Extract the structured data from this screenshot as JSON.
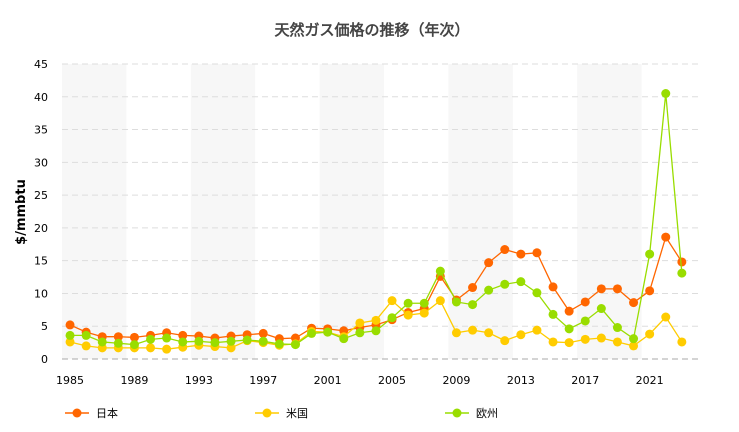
{
  "chart_data": {
    "type": "line",
    "title": "天然ガス価格の推移（年次）",
    "xlabel": "",
    "ylabel": "$/mmbtu",
    "ylim": [
      0,
      45
    ],
    "yticks": [
      0,
      5,
      10,
      15,
      20,
      25,
      30,
      35,
      40,
      45
    ],
    "grid": true,
    "legend_position": "bottom",
    "x": [
      1985,
      1986,
      1987,
      1988,
      1989,
      1990,
      1991,
      1992,
      1993,
      1994,
      1995,
      1996,
      1997,
      1998,
      1999,
      2000,
      2001,
      2002,
      2003,
      2004,
      2005,
      2006,
      2007,
      2008,
      2009,
      2010,
      2011,
      2012,
      2013,
      2014,
      2015,
      2016,
      2017,
      2018,
      2019,
      2020,
      2021,
      2022,
      2023
    ],
    "xtick_labels": [
      "1985",
      "1989",
      "1993",
      "1997",
      "2001",
      "2005",
      "2009",
      "2013",
      "2017",
      "2021"
    ],
    "series": [
      {
        "name": "日本",
        "color": "#ff6600",
        "values": [
          5.2,
          4.1,
          3.4,
          3.4,
          3.3,
          3.6,
          4.0,
          3.6,
          3.5,
          3.2,
          3.5,
          3.7,
          3.9,
          3.1,
          3.2,
          4.7,
          4.6,
          4.3,
          4.8,
          5.2,
          6.0,
          7.1,
          7.7,
          12.6,
          9.0,
          10.9,
          14.7,
          16.7,
          16.0,
          16.2,
          11.0,
          7.3,
          8.7,
          10.7,
          10.7,
          8.6,
          10.4,
          18.6,
          14.8
        ]
      },
      {
        "name": "米国",
        "color": "#ffcc00",
        "values": [
          2.6,
          2.0,
          1.7,
          1.7,
          1.7,
          1.7,
          1.5,
          1.8,
          2.1,
          1.9,
          1.7,
          2.8,
          2.5,
          2.1,
          2.3,
          4.2,
          4.1,
          3.4,
          5.5,
          5.9,
          8.9,
          6.7,
          7.0,
          8.9,
          4.0,
          4.4,
          4.0,
          2.8,
          3.7,
          4.4,
          2.6,
          2.5,
          3.0,
          3.2,
          2.6,
          2.0,
          3.8,
          6.4,
          2.6
        ]
      },
      {
        "name": "欧州",
        "color": "#99dd00",
        "values": [
          3.6,
          3.6,
          2.6,
          2.4,
          2.2,
          3.0,
          3.2,
          2.6,
          2.7,
          2.5,
          2.7,
          2.9,
          2.7,
          2.3,
          2.2,
          3.9,
          4.1,
          3.1,
          4.0,
          4.3,
          6.3,
          8.5,
          8.5,
          13.4,
          8.7,
          8.3,
          10.5,
          11.4,
          11.8,
          10.1,
          6.8,
          4.6,
          5.8,
          7.7,
          4.8,
          3.1,
          16.0,
          40.5,
          13.1
        ]
      }
    ]
  }
}
